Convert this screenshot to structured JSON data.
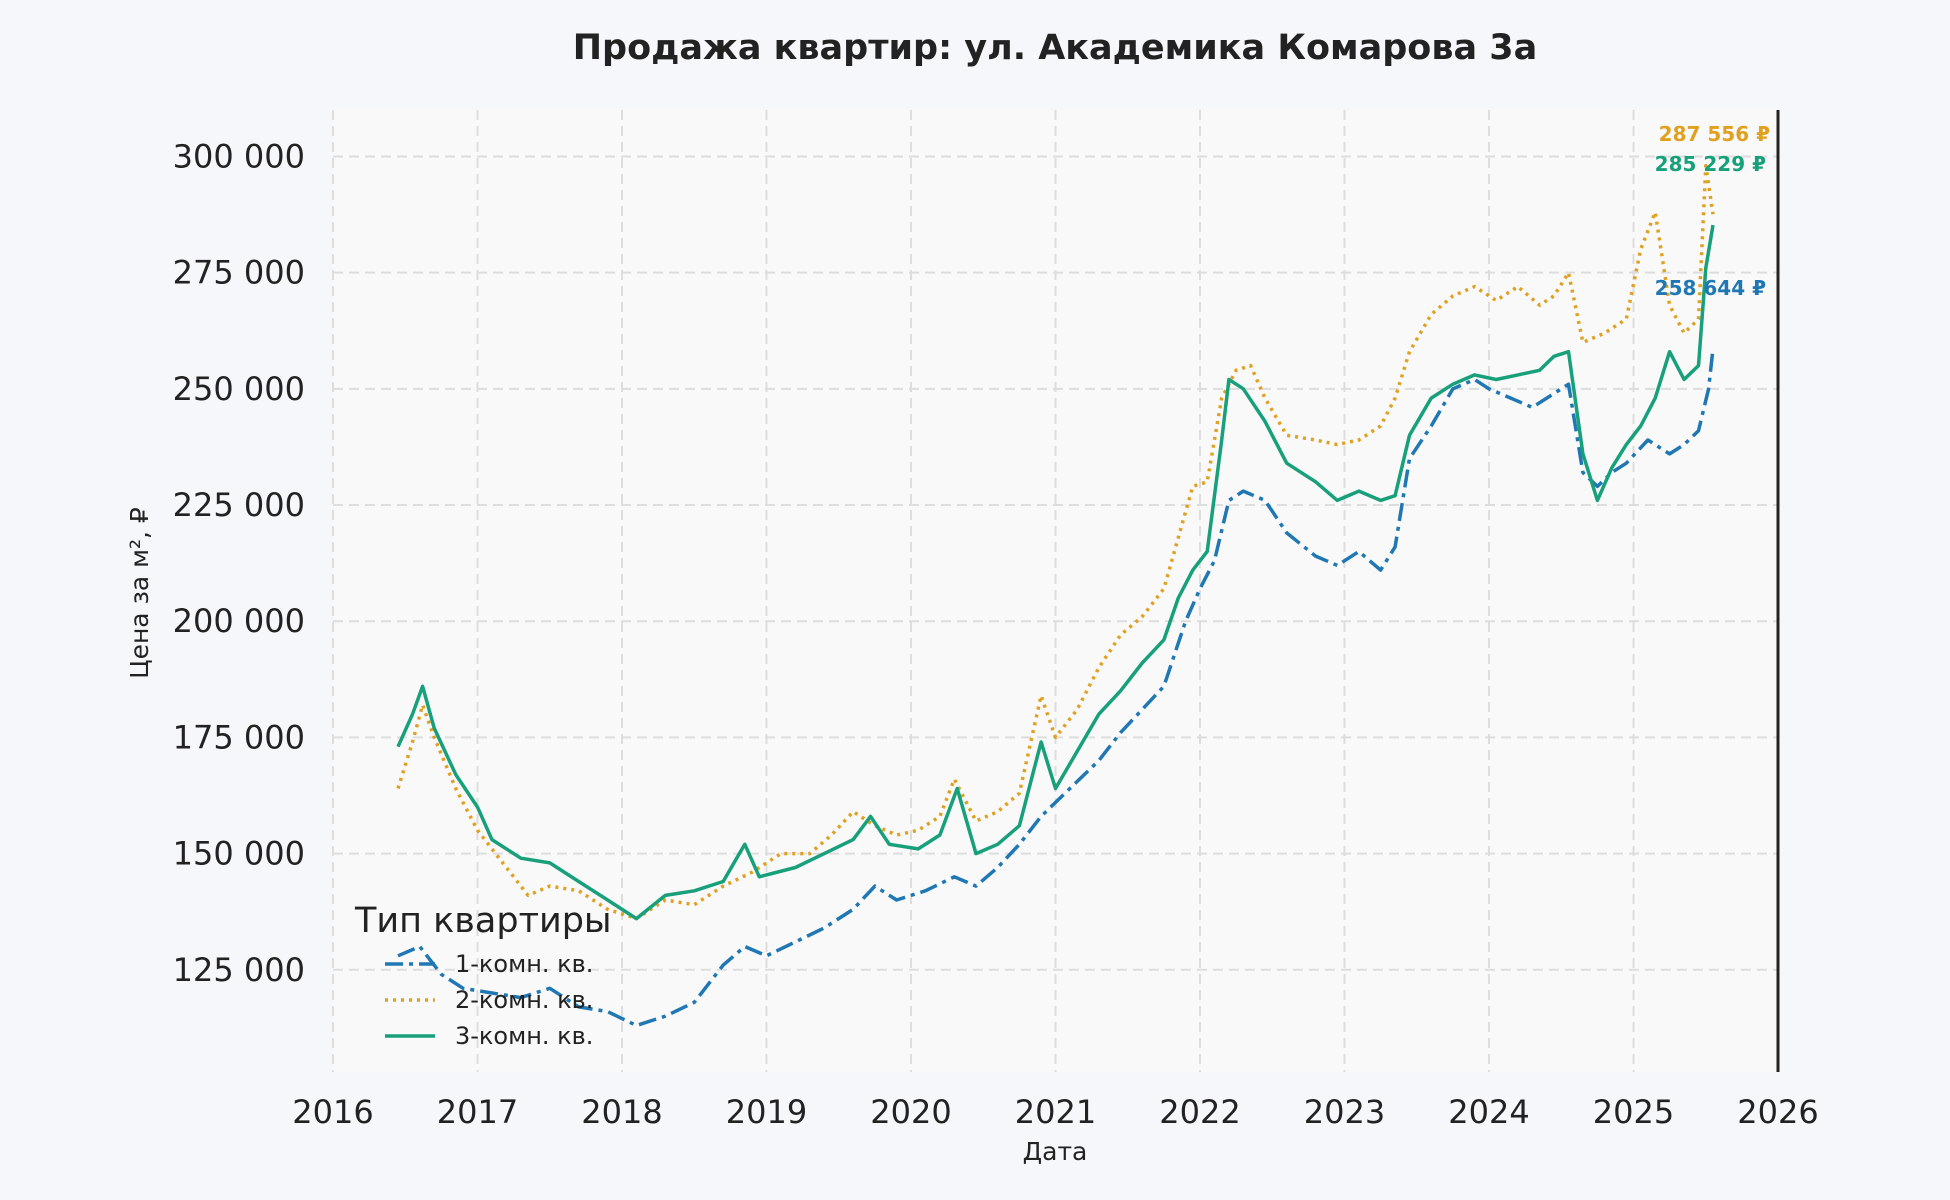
{
  "chart_data": {
    "type": "line",
    "title": "Продажа квартир: ул. Академика Комарова 3а",
    "xlabel": "Дата",
    "ylabel": "Цена за м², ₽",
    "xlim": [
      2016.0,
      2026.0
    ],
    "ylim": [
      103000,
      310000
    ],
    "x_ticks": [
      "2016",
      "2017",
      "2018",
      "2019",
      "2020",
      "2021",
      "2022",
      "2023",
      "2024",
      "2025",
      "2026"
    ],
    "y_ticks": [
      125000,
      150000,
      175000,
      200000,
      225000,
      250000,
      275000,
      300000
    ],
    "y_tick_labels": [
      "125 000",
      "150 000",
      "175 000",
      "200 000",
      "225 000",
      "250 000",
      "275 000",
      "300 000"
    ],
    "grid": true,
    "legend": {
      "title": "Тип квартиры",
      "position": "lower-left"
    },
    "series": [
      {
        "name": "1-комн. кв.",
        "color": "#1f77b4",
        "line_style": "dashdot",
        "end_label": "258 644 ₽",
        "points": [
          [
            2016.45,
            128000
          ],
          [
            2016.6,
            130000
          ],
          [
            2016.75,
            124000
          ],
          [
            2016.9,
            121000
          ],
          [
            2017.1,
            120000
          ],
          [
            2017.3,
            119000
          ],
          [
            2017.5,
            121000
          ],
          [
            2017.7,
            117000
          ],
          [
            2017.9,
            116000
          ],
          [
            2018.1,
            113000
          ],
          [
            2018.3,
            115000
          ],
          [
            2018.5,
            118000
          ],
          [
            2018.7,
            126000
          ],
          [
            2018.85,
            130000
          ],
          [
            2019.0,
            128000
          ],
          [
            2019.2,
            131000
          ],
          [
            2019.4,
            134000
          ],
          [
            2019.6,
            138000
          ],
          [
            2019.75,
            143000
          ],
          [
            2019.9,
            140000
          ],
          [
            2020.1,
            142000
          ],
          [
            2020.3,
            145000
          ],
          [
            2020.45,
            143000
          ],
          [
            2020.6,
            147000
          ],
          [
            2020.75,
            152000
          ],
          [
            2020.9,
            158000
          ],
          [
            2021.1,
            164000
          ],
          [
            2021.3,
            170000
          ],
          [
            2021.45,
            176000
          ],
          [
            2021.6,
            181000
          ],
          [
            2021.75,
            186000
          ],
          [
            2021.9,
            200000
          ],
          [
            2022.0,
            207000
          ],
          [
            2022.1,
            213000
          ],
          [
            2022.2,
            226000
          ],
          [
            2022.3,
            228000
          ],
          [
            2022.45,
            226000
          ],
          [
            2022.6,
            219000
          ],
          [
            2022.8,
            214000
          ],
          [
            2022.95,
            212000
          ],
          [
            2023.1,
            215000
          ],
          [
            2023.25,
            211000
          ],
          [
            2023.35,
            216000
          ],
          [
            2023.45,
            235000
          ],
          [
            2023.6,
            242000
          ],
          [
            2023.75,
            250000
          ],
          [
            2023.9,
            252000
          ],
          [
            2024.0,
            250000
          ],
          [
            2024.15,
            248000
          ],
          [
            2024.3,
            246000
          ],
          [
            2024.45,
            249000
          ],
          [
            2024.55,
            251000
          ],
          [
            2024.65,
            232000
          ],
          [
            2024.75,
            229000
          ],
          [
            2024.85,
            232000
          ],
          [
            2024.95,
            234000
          ],
          [
            2025.1,
            239000
          ],
          [
            2025.25,
            236000
          ],
          [
            2025.35,
            238000
          ],
          [
            2025.45,
            241000
          ],
          [
            2025.52,
            250000
          ],
          [
            2025.55,
            258644
          ]
        ]
      },
      {
        "name": "2-комн. кв.",
        "color": "#e0a020",
        "line_style": "dotted",
        "end_label": "287 556 ₽",
        "points": [
          [
            2016.45,
            164000
          ],
          [
            2016.55,
            174000
          ],
          [
            2016.62,
            182000
          ],
          [
            2016.7,
            175000
          ],
          [
            2016.85,
            164000
          ],
          [
            2017.0,
            155000
          ],
          [
            2017.2,
            147000
          ],
          [
            2017.35,
            141000
          ],
          [
            2017.5,
            143000
          ],
          [
            2017.7,
            142000
          ],
          [
            2017.9,
            138000
          ],
          [
            2018.1,
            136000
          ],
          [
            2018.3,
            140000
          ],
          [
            2018.5,
            139000
          ],
          [
            2018.7,
            143000
          ],
          [
            2018.9,
            146000
          ],
          [
            2019.1,
            150000
          ],
          [
            2019.3,
            150000
          ],
          [
            2019.45,
            154000
          ],
          [
            2019.6,
            159000
          ],
          [
            2019.75,
            156000
          ],
          [
            2019.9,
            154000
          ],
          [
            2020.05,
            155000
          ],
          [
            2020.2,
            158000
          ],
          [
            2020.3,
            166000
          ],
          [
            2020.45,
            157000
          ],
          [
            2020.6,
            159000
          ],
          [
            2020.75,
            163000
          ],
          [
            2020.9,
            184000
          ],
          [
            2021.0,
            175000
          ],
          [
            2021.15,
            181000
          ],
          [
            2021.3,
            190000
          ],
          [
            2021.45,
            197000
          ],
          [
            2021.6,
            201000
          ],
          [
            2021.75,
            207000
          ],
          [
            2021.85,
            218000
          ],
          [
            2021.95,
            229000
          ],
          [
            2022.05,
            230000
          ],
          [
            2022.15,
            248000
          ],
          [
            2022.25,
            254000
          ],
          [
            2022.35,
            255000
          ],
          [
            2022.45,
            248000
          ],
          [
            2022.6,
            240000
          ],
          [
            2022.8,
            239000
          ],
          [
            2022.95,
            238000
          ],
          [
            2023.1,
            239000
          ],
          [
            2023.25,
            242000
          ],
          [
            2023.35,
            248000
          ],
          [
            2023.45,
            258000
          ],
          [
            2023.6,
            266000
          ],
          [
            2023.75,
            270000
          ],
          [
            2023.9,
            272000
          ],
          [
            2024.05,
            269000
          ],
          [
            2024.2,
            272000
          ],
          [
            2024.35,
            268000
          ],
          [
            2024.45,
            270000
          ],
          [
            2024.55,
            275000
          ],
          [
            2024.65,
            260000
          ],
          [
            2024.8,
            262000
          ],
          [
            2024.95,
            265000
          ],
          [
            2025.05,
            280000
          ],
          [
            2025.15,
            288000
          ],
          [
            2025.25,
            268000
          ],
          [
            2025.35,
            262000
          ],
          [
            2025.45,
            265000
          ],
          [
            2025.5,
            298000
          ],
          [
            2025.55,
            287556
          ]
        ]
      },
      {
        "name": "3-комн. кв.",
        "color": "#17a07a",
        "line_style": "solid",
        "end_label": "285 229 ₽",
        "points": [
          [
            2016.45,
            173000
          ],
          [
            2016.55,
            180000
          ],
          [
            2016.62,
            186000
          ],
          [
            2016.7,
            177000
          ],
          [
            2016.85,
            167000
          ],
          [
            2017.0,
            160000
          ],
          [
            2017.1,
            153000
          ],
          [
            2017.3,
            149000
          ],
          [
            2017.5,
            148000
          ],
          [
            2017.7,
            144000
          ],
          [
            2017.9,
            140000
          ],
          [
            2018.1,
            136000
          ],
          [
            2018.3,
            141000
          ],
          [
            2018.5,
            142000
          ],
          [
            2018.7,
            144000
          ],
          [
            2018.85,
            152000
          ],
          [
            2018.95,
            145000
          ],
          [
            2019.2,
            147000
          ],
          [
            2019.4,
            150000
          ],
          [
            2019.6,
            153000
          ],
          [
            2019.72,
            158000
          ],
          [
            2019.85,
            152000
          ],
          [
            2020.05,
            151000
          ],
          [
            2020.2,
            154000
          ],
          [
            2020.32,
            164000
          ],
          [
            2020.45,
            150000
          ],
          [
            2020.6,
            152000
          ],
          [
            2020.75,
            156000
          ],
          [
            2020.9,
            174000
          ],
          [
            2021.0,
            164000
          ],
          [
            2021.15,
            172000
          ],
          [
            2021.3,
            180000
          ],
          [
            2021.45,
            185000
          ],
          [
            2021.6,
            191000
          ],
          [
            2021.75,
            196000
          ],
          [
            2021.85,
            205000
          ],
          [
            2021.95,
            211000
          ],
          [
            2022.05,
            215000
          ],
          [
            2022.15,
            239000
          ],
          [
            2022.2,
            252000
          ],
          [
            2022.3,
            250000
          ],
          [
            2022.45,
            243000
          ],
          [
            2022.6,
            234000
          ],
          [
            2022.8,
            230000
          ],
          [
            2022.95,
            226000
          ],
          [
            2023.1,
            228000
          ],
          [
            2023.25,
            226000
          ],
          [
            2023.35,
            227000
          ],
          [
            2023.45,
            240000
          ],
          [
            2023.6,
            248000
          ],
          [
            2023.75,
            251000
          ],
          [
            2023.9,
            253000
          ],
          [
            2024.05,
            252000
          ],
          [
            2024.2,
            253000
          ],
          [
            2024.35,
            254000
          ],
          [
            2024.45,
            257000
          ],
          [
            2024.55,
            258000
          ],
          [
            2024.65,
            236000
          ],
          [
            2024.75,
            226000
          ],
          [
            2024.85,
            233000
          ],
          [
            2024.95,
            238000
          ],
          [
            2025.05,
            242000
          ],
          [
            2025.15,
            248000
          ],
          [
            2025.25,
            258000
          ],
          [
            2025.35,
            252000
          ],
          [
            2025.45,
            255000
          ],
          [
            2025.5,
            276000
          ],
          [
            2025.55,
            285229
          ]
        ]
      }
    ]
  }
}
